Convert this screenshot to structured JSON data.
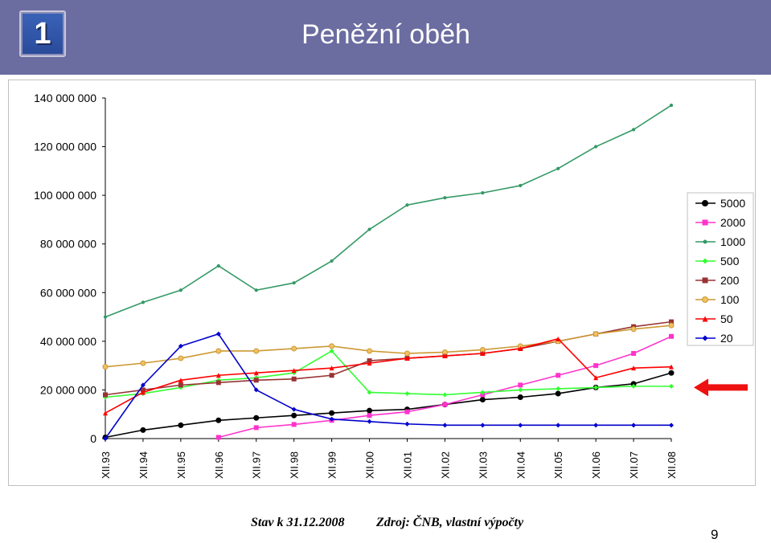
{
  "slide": {
    "number": "1",
    "title": "Peněžní oběh",
    "footer_date": "Stav k 31.12.2008",
    "footer_source": "Zdroj: ČNB, vlastní výpočty",
    "page_number": "9"
  },
  "chart_data": {
    "type": "line",
    "title": "",
    "xlabel": "",
    "ylabel": "",
    "ylim": [
      0,
      140000000
    ],
    "y_ticks": [
      0,
      20000000,
      40000000,
      60000000,
      80000000,
      100000000,
      120000000,
      140000000
    ],
    "y_tick_labels": [
      "0",
      "20 000 000",
      "40 000 000",
      "60 000 000",
      "80 000 000",
      "100 000 000",
      "120 000 000",
      "140 000 000"
    ],
    "x_ticks": [
      "XII.93",
      "XII.94",
      "XII.95",
      "XII.96",
      "XII.97",
      "XII.98",
      "XII.99",
      "XII.00",
      "XII.01",
      "XII.02",
      "XII.03",
      "XII.04",
      "XII.05",
      "XII.06",
      "XII.07",
      "XII.08"
    ],
    "grid": false,
    "legend_position": "right",
    "annotation": "red arrow pointing at the 20 000 000 level",
    "series": [
      {
        "name": "5000",
        "color": "#000000",
        "marker": "circle",
        "start": "XII.93",
        "points": [
          [
            "XII.93",
            500000
          ],
          [
            "XII.94",
            3500000
          ],
          [
            "XII.95",
            5500000
          ],
          [
            "XII.96",
            7500000
          ],
          [
            "XII.97",
            8500000
          ],
          [
            "XII.98",
            9500000
          ],
          [
            "XII.99",
            10500000
          ],
          [
            "XII.00",
            11500000
          ],
          [
            "XII.01",
            12000000
          ],
          [
            "XII.02",
            14000000
          ],
          [
            "XII.03",
            16000000
          ],
          [
            "XII.04",
            17000000
          ],
          [
            "XII.05",
            18500000
          ],
          [
            "XII.06",
            21000000
          ],
          [
            "XII.07",
            22500000
          ],
          [
            "XII.08",
            27000000
          ]
        ]
      },
      {
        "name": "2000",
        "color": "#ff33cc",
        "marker": "square",
        "start": "XII.96",
        "points": [
          [
            "XII.96",
            500000
          ],
          [
            "XII.97",
            4500000
          ],
          [
            "XII.98",
            5800000
          ],
          [
            "XII.99",
            7500000
          ],
          [
            "XII.00",
            9500000
          ],
          [
            "XII.01",
            11000000
          ],
          [
            "XII.02",
            14000000
          ],
          [
            "XII.03",
            18000000
          ],
          [
            "XII.04",
            22000000
          ],
          [
            "XII.05",
            26000000
          ],
          [
            "XII.06",
            30000000
          ],
          [
            "XII.07",
            35000000
          ],
          [
            "XII.08",
            42000000
          ]
        ]
      },
      {
        "name": "1000",
        "color": "#339966",
        "marker": "dot",
        "start": "XII.93",
        "points": [
          [
            "XII.93",
            50000000
          ],
          [
            "XII.94",
            56000000
          ],
          [
            "XII.95",
            61000000
          ],
          [
            "XII.96",
            71000000
          ],
          [
            "XII.97",
            61000000
          ],
          [
            "XII.98",
            64000000
          ],
          [
            "XII.99",
            73000000
          ],
          [
            "XII.00",
            86000000
          ],
          [
            "XII.01",
            96000000
          ],
          [
            "XII.02",
            99000000
          ],
          [
            "XII.03",
            101000000
          ],
          [
            "XII.04",
            104000000
          ],
          [
            "XII.05",
            111000000
          ],
          [
            "XII.06",
            120000000
          ],
          [
            "XII.07",
            127000000
          ],
          [
            "XII.08",
            137000000
          ]
        ]
      },
      {
        "name": "500",
        "color": "#33ff33",
        "marker": "diamond",
        "start": "XII.93",
        "points": [
          [
            "XII.93",
            17000000
          ],
          [
            "XII.94",
            18500000
          ],
          [
            "XII.95",
            21000000
          ],
          [
            "XII.96",
            24000000
          ],
          [
            "XII.97",
            25000000
          ],
          [
            "XII.98",
            27000000
          ],
          [
            "XII.99",
            36000000
          ],
          [
            "XII.00",
            19000000
          ],
          [
            "XII.01",
            18500000
          ],
          [
            "XII.02",
            18000000
          ],
          [
            "XII.03",
            19000000
          ],
          [
            "XII.04",
            20000000
          ],
          [
            "XII.05",
            20500000
          ],
          [
            "XII.06",
            21000000
          ],
          [
            "XII.07",
            21500000
          ],
          [
            "XII.08",
            21500000
          ]
        ]
      },
      {
        "name": "200",
        "color": "#993333",
        "marker": "square",
        "start": "XII.93",
        "points": [
          [
            "XII.93",
            18000000
          ],
          [
            "XII.94",
            20000000
          ],
          [
            "XII.95",
            22000000
          ],
          [
            "XII.96",
            23000000
          ],
          [
            "XII.97",
            24000000
          ],
          [
            "XII.98",
            24500000
          ],
          [
            "XII.99",
            26000000
          ],
          [
            "XII.00",
            32000000
          ],
          [
            "XII.01",
            33000000
          ],
          [
            "XII.02",
            34000000
          ],
          [
            "XII.03",
            35000000
          ],
          [
            "XII.04",
            37000000
          ],
          [
            "XII.05",
            40000000
          ],
          [
            "XII.06",
            43000000
          ],
          [
            "XII.07",
            46000000
          ],
          [
            "XII.08",
            48000000
          ]
        ]
      },
      {
        "name": "100",
        "color": "#cc9933",
        "marker": "circle",
        "start": "XII.93",
        "points": [
          [
            "XII.93",
            29500000
          ],
          [
            "XII.94",
            31000000
          ],
          [
            "XII.95",
            33000000
          ],
          [
            "XII.96",
            36000000
          ],
          [
            "XII.97",
            36000000
          ],
          [
            "XII.98",
            37000000
          ],
          [
            "XII.99",
            38000000
          ],
          [
            "XII.00",
            36000000
          ],
          [
            "XII.01",
            35000000
          ],
          [
            "XII.02",
            35500000
          ],
          [
            "XII.03",
            36500000
          ],
          [
            "XII.04",
            38000000
          ],
          [
            "XII.05",
            40000000
          ],
          [
            "XII.06",
            43000000
          ],
          [
            "XII.07",
            45000000
          ],
          [
            "XII.08",
            46500000
          ]
        ]
      },
      {
        "name": "50",
        "color": "#ff0000",
        "marker": "triangle",
        "start": "XII.93",
        "points": [
          [
            "XII.93",
            10500000
          ],
          [
            "XII.94",
            19000000
          ],
          [
            "XII.95",
            24000000
          ],
          [
            "XII.96",
            26000000
          ],
          [
            "XII.97",
            27000000
          ],
          [
            "XII.98",
            28000000
          ],
          [
            "XII.99",
            29000000
          ],
          [
            "XII.00",
            31000000
          ],
          [
            "XII.01",
            33000000
          ],
          [
            "XII.02",
            34000000
          ],
          [
            "XII.03",
            35000000
          ],
          [
            "XII.04",
            37000000
          ],
          [
            "XII.05",
            41000000
          ],
          [
            "XII.06",
            25000000
          ],
          [
            "XII.07",
            29000000
          ],
          [
            "XII.08",
            29500000
          ]
        ]
      },
      {
        "name": "20",
        "color": "#0000cc",
        "marker": "diamond",
        "start": "XII.93",
        "points": [
          [
            "XII.93",
            0
          ],
          [
            "XII.94",
            22000000
          ],
          [
            "XII.95",
            38000000
          ],
          [
            "XII.96",
            43000000
          ],
          [
            "XII.97",
            20000000
          ],
          [
            "XII.98",
            12000000
          ],
          [
            "XII.99",
            8000000
          ],
          [
            "XII.00",
            7000000
          ],
          [
            "XII.01",
            6000000
          ],
          [
            "XII.02",
            5500000
          ],
          [
            "XII.03",
            5500000
          ],
          [
            "XII.04",
            5500000
          ],
          [
            "XII.05",
            5500000
          ],
          [
            "XII.06",
            5500000
          ],
          [
            "XII.07",
            5500000
          ],
          [
            "XII.08",
            5500000
          ]
        ]
      }
    ]
  }
}
